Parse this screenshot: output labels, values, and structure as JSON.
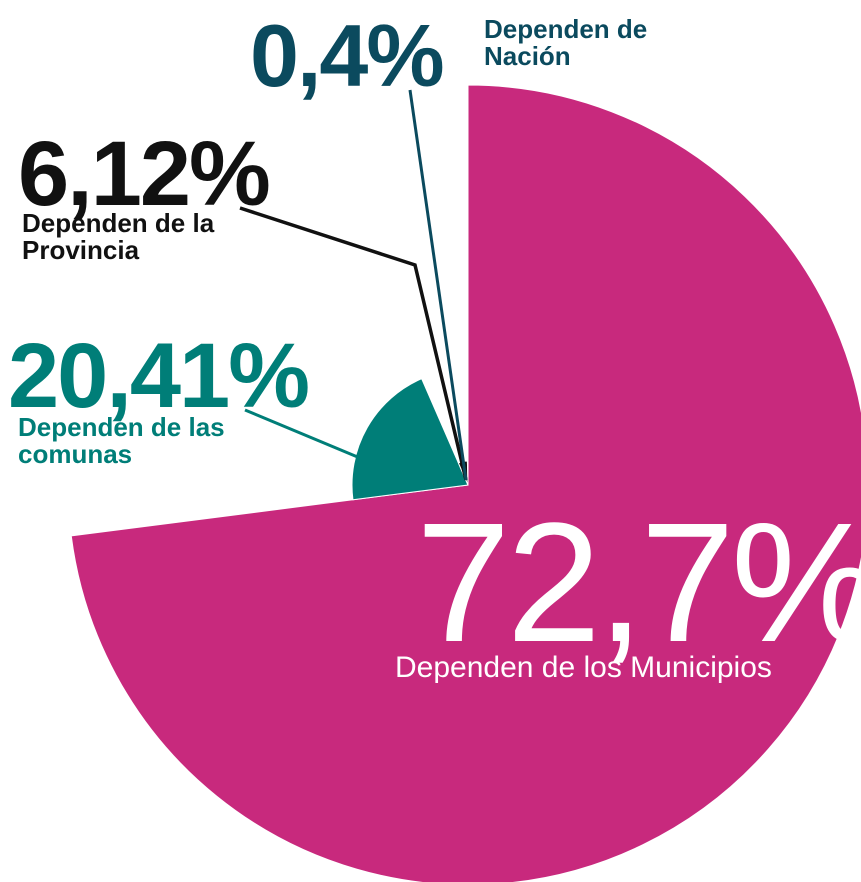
{
  "chart_data": {
    "type": "pie",
    "categories": [
      "Dependen de los Municipios",
      "Dependen de las comunas",
      "Dependen de la Provincia",
      "Dependen de Nación"
    ],
    "values": [
      72.7,
      20.41,
      6.12,
      0.4
    ],
    "value_labels": [
      "72,7%",
      "20,41%",
      "6,12%",
      "0,4%"
    ],
    "colors": [
      "#c8297d",
      "#007e78",
      "#111111",
      "#0b4a5e"
    ]
  }
}
